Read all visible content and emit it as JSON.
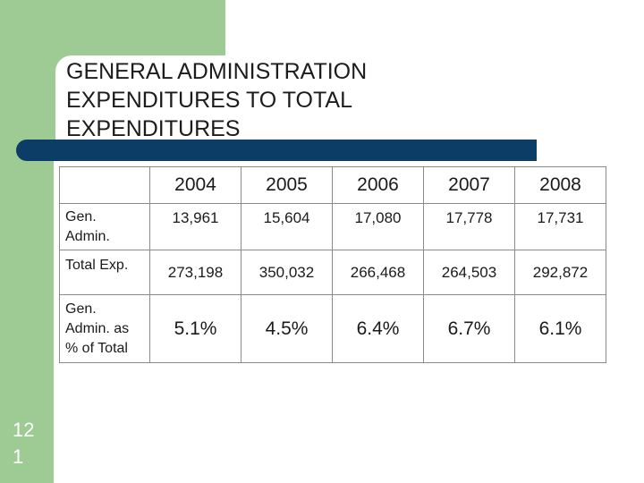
{
  "slide": {
    "title_lines": [
      "GENERAL ADMINISTRATION",
      "EXPENDITURES TO TOTAL",
      "EXPENDITURES"
    ],
    "number_lines": [
      "12",
      "1"
    ]
  },
  "table": {
    "header": [
      "",
      "2004",
      "2005",
      "2006",
      "2007",
      "2008"
    ],
    "rows": [
      {
        "label_lines": [
          "Gen.",
          "Admin."
        ],
        "values": [
          "13,961",
          "15,604",
          "17,080",
          "17,778",
          "17,731"
        ]
      },
      {
        "label_lines": [
          "Total Exp."
        ],
        "values": [
          "273,198",
          "350,032",
          "266,468",
          "264,503",
          "292,872"
        ]
      },
      {
        "label_lines": [
          "Gen.",
          "Admin. as",
          "% of Total"
        ],
        "values": [
          "5.1%",
          "4.5%",
          "6.4%",
          "6.7%",
          "6.1%"
        ]
      }
    ]
  },
  "colors": {
    "accent_green": "#9ecb94",
    "bar_navy": "#0b3d66"
  }
}
